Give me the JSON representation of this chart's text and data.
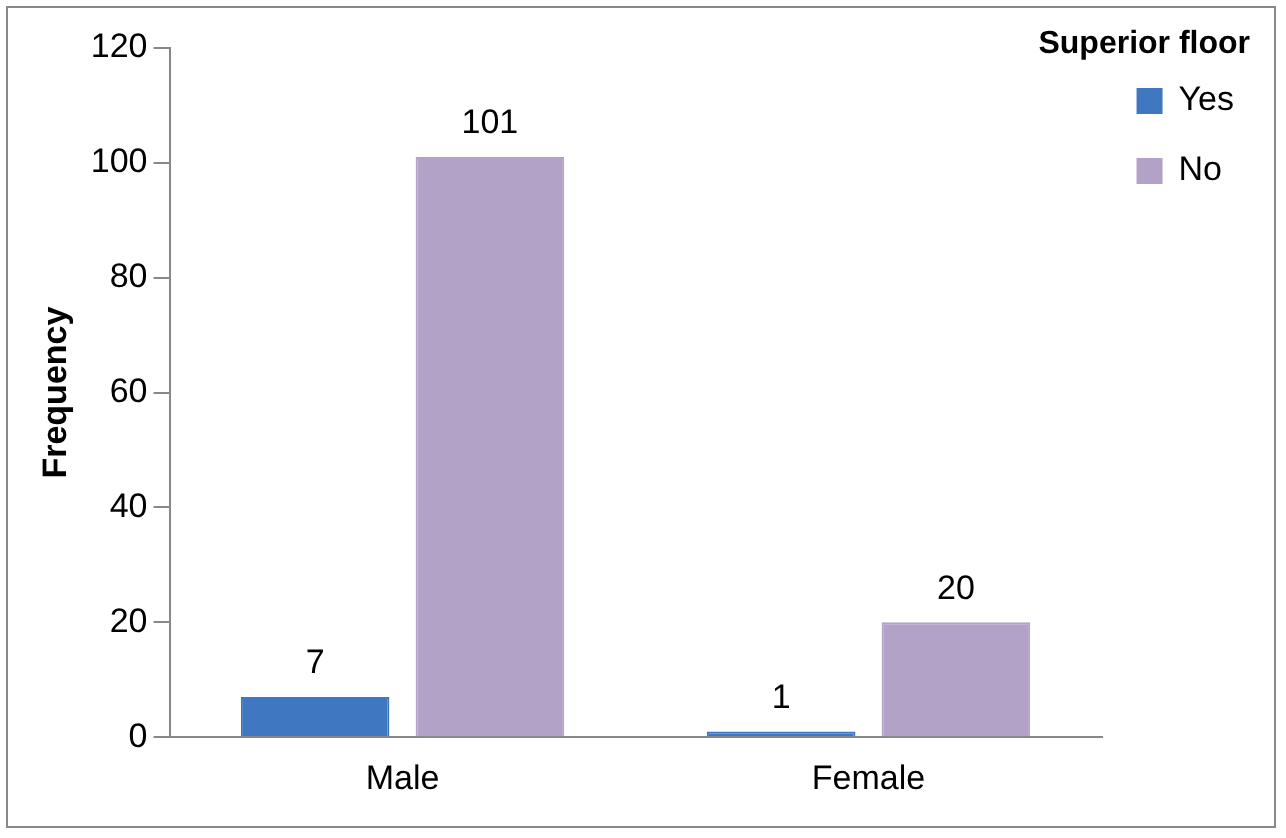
{
  "chart_data": {
    "type": "bar",
    "ylabel": "Frequency",
    "legend_title": "Superior floor",
    "categories": [
      "Male",
      "Female"
    ],
    "series": [
      {
        "name": "Yes",
        "color": "#3f78c0",
        "values": [
          7,
          1
        ]
      },
      {
        "name": "No",
        "color": "#b3a2c7",
        "values": [
          101,
          20
        ]
      }
    ],
    "ylim": [
      0,
      120
    ],
    "yticks": [
      0,
      20,
      40,
      60,
      80,
      100,
      120
    ],
    "grid": false,
    "legend": "right",
    "data_labels": true
  }
}
